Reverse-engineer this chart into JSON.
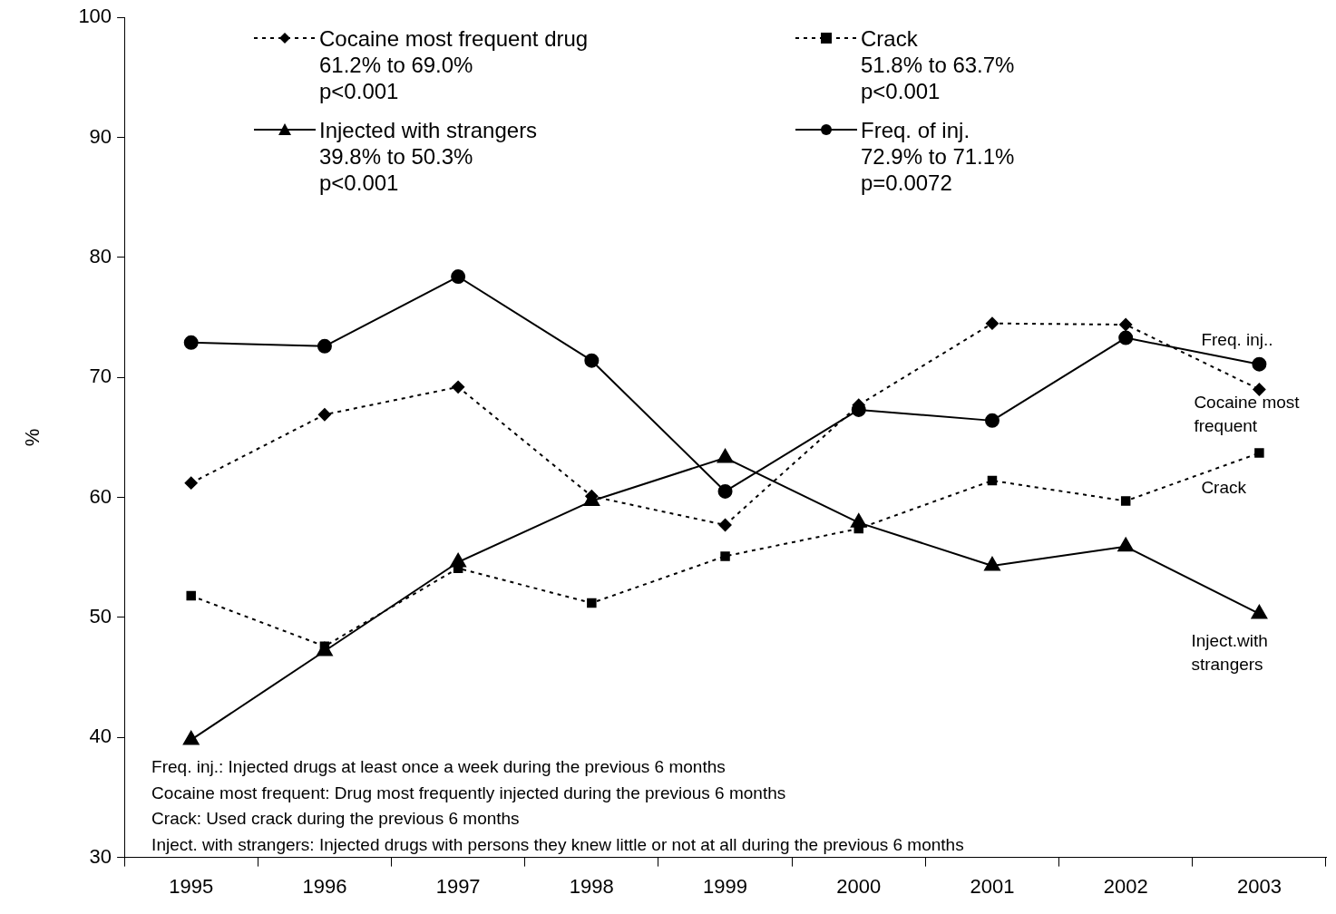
{
  "chart_data": {
    "type": "line",
    "ylabel": "%",
    "categories": [
      "1995",
      "1996",
      "1997",
      "1998",
      "1999",
      "2000",
      "2001",
      "2002",
      "2003"
    ],
    "series": [
      {
        "name": "Cocaine most frequent drug",
        "color": "#000000",
        "marker": "diamond",
        "line_style": "dotted",
        "values": [
          61.2,
          66.9,
          69.2,
          60.1,
          57.7,
          67.7,
          74.5,
          74.4,
          69.0
        ]
      },
      {
        "name": "Crack",
        "color": "#000000",
        "marker": "square",
        "line_style": "dotted",
        "values": [
          51.8,
          47.6,
          54.1,
          51.2,
          55.1,
          57.4,
          61.4,
          59.7,
          63.7
        ]
      },
      {
        "name": "Injected with strangers",
        "color": "#000000",
        "marker": "triangle",
        "line_style": "solid",
        "values": [
          39.8,
          47.2,
          54.6,
          59.7,
          63.3,
          57.9,
          54.3,
          55.9,
          50.3
        ]
      },
      {
        "name": "Freq. of inj.",
        "color": "#000000",
        "marker": "circle",
        "line_style": "solid",
        "values": [
          72.9,
          72.6,
          78.4,
          71.4,
          60.5,
          67.3,
          66.4,
          73.3,
          71.1
        ]
      }
    ],
    "ylim": [
      30,
      100
    ],
    "yticks": [
      30,
      40,
      50,
      60,
      70,
      80,
      90,
      100
    ],
    "grid": false,
    "legend": "top",
    "annotations": [
      "61.2% to 69.0%\np<0.001",
      "51.8% to 63.7%\np<0.001",
      "39.8% to 50.3%\np<0.001",
      "72.9% to 71.1%\np=0.0072",
      {
        "text": "Freq. inj..",
        "x": "2003",
        "y": 71.1
      },
      {
        "text": "Cocaine most\nfrequent",
        "x": "2003",
        "y": 69.0
      },
      {
        "text": "Crack",
        "x": "2003",
        "y": 63.7
      },
      {
        "text": "Inject.with\nstrangers",
        "x": "2003",
        "y": 50.3
      },
      "Freq. inj.: Injected drugs at least once a week during the previous 6 months",
      "Cocaine most frequent: Drug most frequently injected during the previous 6 months",
      "Crack: Used crack during the previous 6 months",
      "Inject. with strangers: Injected drugs with persons they knew little or not at all during the previous 6 months"
    ]
  }
}
